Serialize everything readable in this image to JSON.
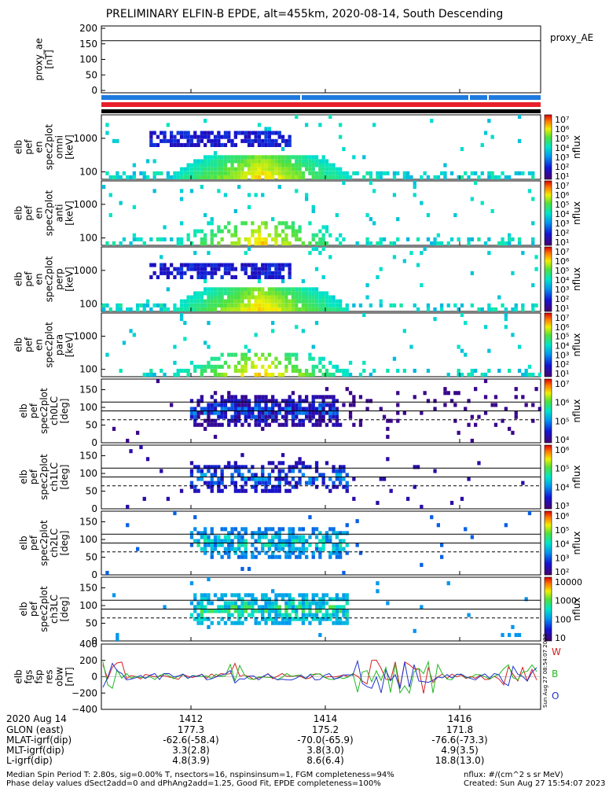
{
  "header": {
    "title": "PRELIMINARY ELFIN-B EPDE, alt=455km, 2020-08-14, South Descending"
  },
  "colors": {
    "orbit_bar_blue": "#1f7ae0",
    "orbit_bar_red": "#e8202a",
    "orbit_bar_black": "#000000",
    "trace_W": "#d42020",
    "trace_B": "#22b822",
    "trace_O": "#2233cc"
  },
  "panels": [
    {
      "label": "proxy_ae [nT]",
      "right_label": "proxy_AE",
      "yticks": [
        "200",
        "150",
        "100",
        "50",
        "0"
      ],
      "hline": 160
    },
    {
      "label": "elb pef en spec2plot omni [keV]",
      "yticks": [
        "1000",
        "100"
      ],
      "colorbar": {
        "ticks": [
          "10⁷",
          "10⁶",
          "10⁵",
          "10⁴",
          "10³",
          "10²",
          "10¹"
        ],
        "unit": "nflux"
      }
    },
    {
      "label": "elb pef en spec2plot anti [keV]",
      "yticks": [
        "1000",
        "100"
      ],
      "colorbar": {
        "ticks": [
          "10⁷",
          "10⁶",
          "10⁵",
          "10⁴",
          "10³",
          "10²",
          "10¹"
        ],
        "unit": "nflux"
      }
    },
    {
      "label": "elb pef en spec2plot perp [keV]",
      "yticks": [
        "1000",
        "100"
      ],
      "colorbar": {
        "ticks": [
          "10⁷",
          "10⁶",
          "10⁵",
          "10⁴",
          "10³",
          "10²",
          "10¹"
        ],
        "unit": "nflux"
      }
    },
    {
      "label": "elb pef en spec2plot para [keV]",
      "yticks": [
        "1000",
        "100"
      ],
      "colorbar": {
        "ticks": [
          "10⁷",
          "10⁶",
          "10⁵",
          "10⁴",
          "10³",
          "10²",
          "10¹"
        ],
        "unit": "nflux"
      }
    },
    {
      "label": "elb pef spec2plot ch0LC [deg]",
      "yticks": [
        "150",
        "100",
        "50",
        "0"
      ],
      "colorbar": {
        "ticks": [
          "10⁷",
          "10⁶",
          "10⁵",
          "10⁴"
        ],
        "unit": "nflux"
      }
    },
    {
      "label": "elb pef spec2plot ch1LC [deg]",
      "yticks": [
        "150",
        "100",
        "50",
        "0"
      ],
      "colorbar": {
        "ticks": [
          "10⁶",
          "10⁵",
          "10⁴",
          "10³"
        ],
        "unit": "nflux"
      }
    },
    {
      "label": "elb pef spec2plot ch2LC [deg]",
      "yticks": [
        "150",
        "100",
        "50",
        "0"
      ],
      "colorbar": {
        "ticks": [
          "10⁶",
          "10⁵",
          "10⁴",
          "10³",
          "10²"
        ],
        "unit": "nflux"
      }
    },
    {
      "label": "elb pef spec2plot ch3LC [deg]",
      "yticks": [
        "150",
        "100",
        "50",
        "0"
      ],
      "colorbar": {
        "ticks": [
          "10000",
          "1000",
          "100",
          "10"
        ],
        "unit": "nflux"
      }
    },
    {
      "label": "elb fgs fsp res obw [nT]",
      "yticks": [
        "400",
        "200",
        "0",
        "−200",
        "−400"
      ],
      "legend": [
        "W",
        "B",
        "O"
      ],
      "stamp": "Sun Aug 27 08:54:07 2023"
    }
  ],
  "xaxis": {
    "labels": [
      "2020 Aug 14",
      "GLON (east)",
      "MLAT-igrf(dip)",
      "MLT-igrf(dip)",
      "L-igrf(dip)"
    ],
    "ticks": [
      {
        "t": "1412",
        "glon": "177.3",
        "mlat": "-62.6(-58.4)",
        "mlt": "3.3(2.8)",
        "l": "4.8(3.9)"
      },
      {
        "t": "1414",
        "glon": "175.2",
        "mlat": "-70.0(-65.9)",
        "mlt": "3.8(3.0)",
        "l": "8.6(6.4)"
      },
      {
        "t": "1416",
        "glon": "171.8",
        "mlat": "-76.6(-73.3)",
        "mlt": "4.9(3.5)",
        "l": "18.8(13.0)"
      }
    ]
  },
  "footer": {
    "line1": "Median Spin Period T: 2.80s, sig=0.00% T, nsectors=16, nspinsinsum=1, FGM completeness=94%",
    "line2": "Phase delay values dSect2add=0 and dPhAng2add=1.25, Good Fit, EPDE completeness=100%",
    "units": "nflux: #/(cm^2 s sr MeV)",
    "created": "Created: Sun Aug 27 15:54:07 2023"
  },
  "chart_data": {
    "type": "heatmap",
    "title": "PRELIMINARY ELFIN-B EPDE, alt=455km, 2020-08-14, South Descending",
    "x_ticks": [
      "1412",
      "1414",
      "1416"
    ],
    "proxy_ae": {
      "ylim": [
        0,
        200
      ],
      "value": 160
    },
    "energy_ylim_keV": [
      60,
      5000
    ],
    "pitch_ylim_deg": [
      0,
      180
    ],
    "pitch_lines_deg": [
      115,
      90,
      65
    ],
    "fgs_ylim": [
      -400,
      400
    ]
  }
}
